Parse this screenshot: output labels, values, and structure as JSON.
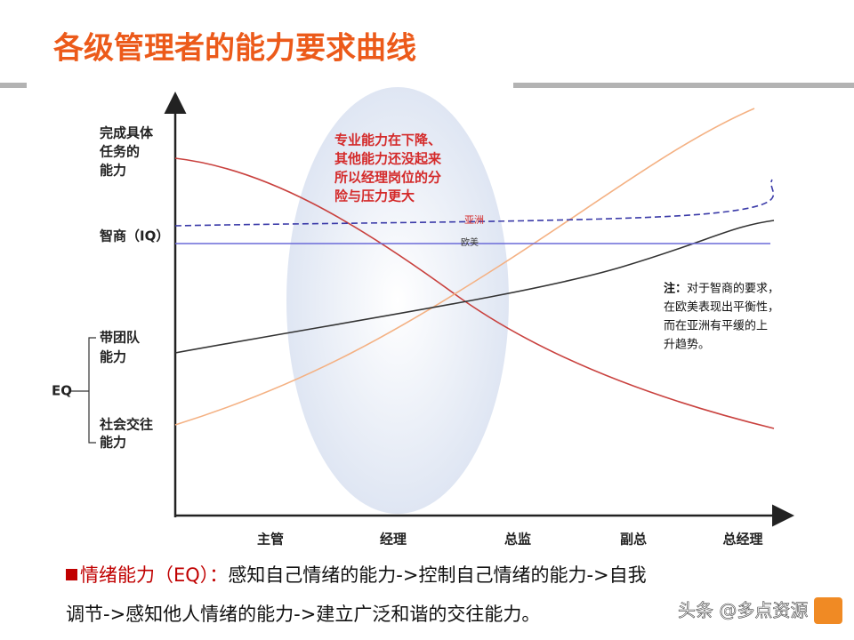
{
  "title": "各级管理者的能力要求曲线",
  "y_labels": [
    {
      "lines": [
        "完成具体",
        "任务的",
        "能力"
      ]
    },
    {
      "lines": [
        "智商（IQ）"
      ]
    },
    {
      "lines": [
        "带团队",
        "能力"
      ]
    },
    {
      "lines": [
        "社会交往",
        "能力"
      ]
    }
  ],
  "eq_label": "EQ",
  "x_labels": [
    "主管",
    "经理",
    "总监",
    "副总",
    "总经理"
  ],
  "callout": [
    "专业能力在下降、",
    "其他能力还没起来",
    "所以经理岗位的分",
    "险与压力更大"
  ],
  "line_labels": {
    "asia": "亚洲",
    "west": "欧美"
  },
  "note": {
    "label": "注：",
    "lines": [
      "对于智商的要求，",
      "在欧美表现出平衡性，",
      "而在亚洲有平缓的上",
      "升趋势。"
    ]
  },
  "footer": {
    "heading": "情绪能力（EQ）：",
    "lines": [
      "感知自己情绪的能力->控制自己情绪的能力->自我",
      "调节->感知他人情绪的能力->建立广泛和谐的交往能力。"
    ]
  },
  "watermark": "头条 @多点资源"
}
